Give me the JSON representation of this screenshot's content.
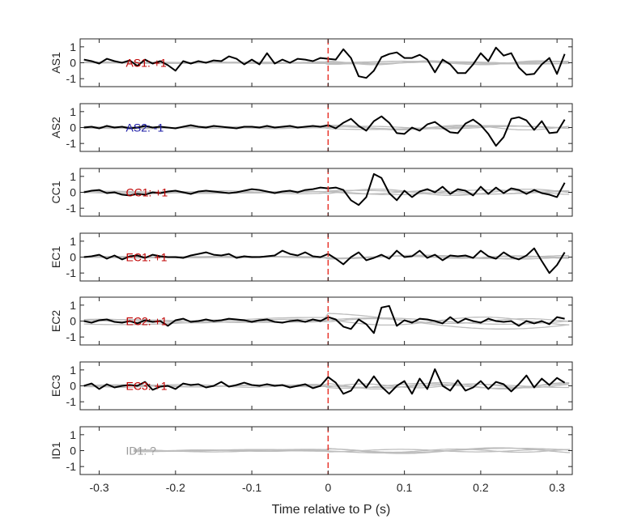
{
  "chart_data": {
    "type": "line",
    "xlabel": "Time relative to P (s)",
    "xlim": [
      -0.325,
      0.32
    ],
    "ylim": [
      -1.5,
      1.5
    ],
    "xticks": [
      -0.3,
      -0.2,
      -0.1,
      0,
      0.1,
      0.2,
      0.3
    ],
    "xtick_labels": [
      "-0.3",
      "-0.2",
      "-0.1",
      "0",
      "0.1",
      "0.2",
      "0.3"
    ],
    "yticks": [
      -1,
      0,
      1
    ],
    "ytick_labels": [
      "-1",
      "0",
      "1"
    ],
    "marker_x": 0,
    "marker_color": "#e8332a",
    "black_color": "#000000",
    "gray_color": "#bdbdbd",
    "panels": [
      {
        "ylabel": "AS1",
        "annotation": "AS1: +1",
        "annotation_color": "#c00000",
        "black": {
          "x": [
            -0.32,
            -0.31,
            -0.3,
            -0.29,
            -0.28,
            -0.27,
            -0.26,
            -0.25,
            -0.24,
            -0.23,
            -0.22,
            -0.21,
            -0.2,
            -0.19,
            -0.18,
            -0.17,
            -0.16,
            -0.15,
            -0.14,
            -0.13,
            -0.12,
            -0.11,
            -0.1,
            -0.09,
            -0.08,
            -0.07,
            -0.06,
            -0.05,
            -0.04,
            -0.03,
            -0.02,
            -0.01,
            0,
            0.01,
            0.02,
            0.03,
            0.04,
            0.05,
            0.06,
            0.07,
            0.08,
            0.09,
            0.1,
            0.11,
            0.12,
            0.13,
            0.14,
            0.15,
            0.16,
            0.17,
            0.18,
            0.19,
            0.2,
            0.21,
            0.22,
            0.23,
            0.24,
            0.25,
            0.26,
            0.27,
            0.28,
            0.29,
            0.3,
            0.31
          ],
          "y": [
            0.2,
            0.1,
            -0.05,
            0.25,
            0.1,
            0.0,
            0.15,
            -0.2,
            0.2,
            -0.05,
            0.1,
            -0.15,
            -0.5,
            0.1,
            -0.05,
            0.1,
            0.0,
            0.15,
            0.1,
            0.4,
            0.25,
            -0.1,
            0.2,
            -0.1,
            0.6,
            -0.05,
            0.2,
            0.0,
            0.25,
            0.2,
            0.1,
            0.3,
            0.25,
            0.2,
            0.85,
            0.3,
            -0.85,
            -0.95,
            -0.5,
            0.35,
            0.55,
            0.65,
            0.3,
            0.3,
            0.5,
            0.2,
            -0.6,
            0.2,
            -0.1,
            -0.65,
            -0.65,
            -0.1,
            0.6,
            0.1,
            0.95,
            0.45,
            0.6,
            -0.3,
            -0.75,
            -0.7,
            -0.1,
            0.3,
            -0.7,
            0.55
          ]
        },
        "gray": [
          {
            "amp": 0.08,
            "freq": 3,
            "phase": 0.0
          },
          {
            "amp": 0.1,
            "freq": 5,
            "phase": 1.0
          },
          {
            "amp": 0.06,
            "freq": 4,
            "phase": 2.0
          },
          {
            "amp": 0.12,
            "freq": 7,
            "phase": 0.5
          },
          {
            "amp": 0.05,
            "freq": 6,
            "phase": 3.0
          }
        ]
      },
      {
        "ylabel": "AS2",
        "annotation": "AS2: -1",
        "annotation_color": "#1a1aa6",
        "black": {
          "x": [
            -0.32,
            -0.31,
            -0.3,
            -0.29,
            -0.28,
            -0.27,
            -0.26,
            -0.25,
            -0.24,
            -0.23,
            -0.22,
            -0.21,
            -0.2,
            -0.19,
            -0.18,
            -0.17,
            -0.16,
            -0.15,
            -0.14,
            -0.13,
            -0.12,
            -0.11,
            -0.1,
            -0.09,
            -0.08,
            -0.07,
            -0.06,
            -0.05,
            -0.04,
            -0.03,
            -0.02,
            -0.01,
            0,
            0.01,
            0.02,
            0.03,
            0.04,
            0.05,
            0.06,
            0.07,
            0.08,
            0.09,
            0.1,
            0.11,
            0.12,
            0.13,
            0.14,
            0.15,
            0.16,
            0.17,
            0.18,
            0.19,
            0.2,
            0.21,
            0.22,
            0.23,
            0.24,
            0.25,
            0.26,
            0.27,
            0.28,
            0.29,
            0.3,
            0.31
          ],
          "y": [
            0.0,
            0.05,
            -0.05,
            0.1,
            0.0,
            0.05,
            -0.05,
            0.0,
            0.1,
            0.0,
            0.05,
            0.0,
            -0.05,
            0.05,
            0.15,
            0.05,
            0.0,
            0.1,
            0.05,
            0.0,
            -0.05,
            0.05,
            0.05,
            0.0,
            0.1,
            0.0,
            0.05,
            0.1,
            0.0,
            0.05,
            0.1,
            0.05,
            0.15,
            -0.05,
            0.3,
            0.55,
            0.1,
            -0.2,
            0.4,
            0.7,
            0.3,
            -0.35,
            -0.4,
            0.0,
            -0.2,
            0.2,
            0.35,
            0.0,
            -0.3,
            -0.35,
            0.25,
            0.5,
            0.15,
            -0.4,
            -1.15,
            -0.6,
            0.55,
            0.65,
            0.45,
            -0.15,
            0.4,
            -0.35,
            -0.3,
            0.5
          ]
        },
        "gray": [
          {
            "amp": 0.1,
            "freq": 4,
            "phase": 0.3
          },
          {
            "amp": 0.15,
            "freq": 6,
            "phase": 1.7
          },
          {
            "amp": 0.08,
            "freq": 5,
            "phase": 2.5
          },
          {
            "amp": 0.12,
            "freq": 3,
            "phase": 4.0
          }
        ]
      },
      {
        "ylabel": "CC1",
        "annotation": "CC1: +1",
        "annotation_color": "#c00000",
        "black": {
          "x": [
            -0.32,
            -0.31,
            -0.3,
            -0.29,
            -0.28,
            -0.27,
            -0.26,
            -0.25,
            -0.24,
            -0.23,
            -0.22,
            -0.21,
            -0.2,
            -0.19,
            -0.18,
            -0.17,
            -0.16,
            -0.15,
            -0.14,
            -0.13,
            -0.12,
            -0.11,
            -0.1,
            -0.09,
            -0.08,
            -0.07,
            -0.06,
            -0.05,
            -0.04,
            -0.03,
            -0.02,
            -0.01,
            0,
            0.01,
            0.02,
            0.03,
            0.04,
            0.05,
            0.06,
            0.07,
            0.08,
            0.09,
            0.1,
            0.11,
            0.12,
            0.13,
            0.14,
            0.15,
            0.16,
            0.17,
            0.18,
            0.19,
            0.2,
            0.21,
            0.22,
            0.23,
            0.24,
            0.25,
            0.26,
            0.27,
            0.28,
            0.29,
            0.3,
            0.31
          ],
          "y": [
            0.0,
            0.1,
            0.15,
            -0.05,
            0.0,
            -0.15,
            -0.2,
            -0.1,
            -0.15,
            0.0,
            -0.05,
            0.05,
            0.1,
            0.0,
            -0.1,
            0.05,
            0.1,
            0.05,
            0.0,
            -0.05,
            0.0,
            0.1,
            0.2,
            0.15,
            0.05,
            -0.05,
            0.05,
            0.1,
            0.0,
            0.15,
            0.2,
            0.3,
            0.25,
            0.3,
            0.15,
            -0.5,
            -0.8,
            -0.3,
            1.15,
            0.9,
            -0.05,
            -0.5,
            0.1,
            -0.3,
            0.05,
            0.2,
            0.0,
            0.35,
            -0.1,
            0.2,
            0.1,
            -0.2,
            0.35,
            -0.1,
            0.3,
            -0.05,
            0.25,
            0.15,
            -0.1,
            0.15,
            -0.05,
            -0.15,
            -0.3,
            0.6
          ]
        },
        "gray": [
          {
            "amp": 0.15,
            "freq": 4,
            "phase": 0.8
          },
          {
            "amp": 0.2,
            "freq": 5,
            "phase": 2.1
          },
          {
            "amp": 0.1,
            "freq": 6,
            "phase": 3.3
          },
          {
            "amp": 0.12,
            "freq": 3,
            "phase": 1.2
          }
        ]
      },
      {
        "ylabel": "EC1",
        "annotation": "EC1: +1",
        "annotation_color": "#c00000",
        "black": {
          "x": [
            -0.32,
            -0.31,
            -0.3,
            -0.29,
            -0.28,
            -0.27,
            -0.26,
            -0.25,
            -0.24,
            -0.23,
            -0.22,
            -0.21,
            -0.2,
            -0.19,
            -0.18,
            -0.17,
            -0.16,
            -0.15,
            -0.14,
            -0.13,
            -0.12,
            -0.11,
            -0.1,
            -0.09,
            -0.08,
            -0.07,
            -0.06,
            -0.05,
            -0.04,
            -0.03,
            -0.02,
            -0.01,
            0,
            0.01,
            0.02,
            0.03,
            0.04,
            0.05,
            0.06,
            0.07,
            0.08,
            0.09,
            0.1,
            0.11,
            0.12,
            0.13,
            0.14,
            0.15,
            0.16,
            0.17,
            0.18,
            0.19,
            0.2,
            0.21,
            0.22,
            0.23,
            0.24,
            0.25,
            0.26,
            0.27,
            0.28,
            0.29,
            0.3,
            0.31
          ],
          "y": [
            0.0,
            0.05,
            0.15,
            -0.1,
            0.1,
            -0.15,
            0.05,
            0.1,
            -0.05,
            0.15,
            0.05,
            0.0,
            0.0,
            -0.05,
            0.1,
            0.2,
            0.3,
            0.15,
            0.1,
            0.2,
            -0.05,
            0.05,
            0.0,
            0.0,
            0.05,
            0.1,
            0.4,
            0.2,
            0.1,
            0.3,
            0.05,
            0.0,
            0.2,
            -0.1,
            -0.45,
            0.0,
            0.3,
            -0.2,
            -0.05,
            0.15,
            -0.1,
            0.4,
            0.0,
            0.05,
            0.4,
            -0.05,
            0.15,
            -0.2,
            0.1,
            0.05,
            0.1,
            -0.05,
            0.4,
            0.05,
            -0.1,
            0.3,
            0.0,
            -0.15,
            0.1,
            0.55,
            -0.25,
            -1.0,
            -0.5,
            0.3
          ]
        },
        "gray": [
          {
            "amp": 0.1,
            "freq": 5,
            "phase": 0.4
          },
          {
            "amp": 0.08,
            "freq": 7,
            "phase": 1.9
          },
          {
            "amp": 0.12,
            "freq": 4,
            "phase": 3.0
          },
          {
            "amp": 0.06,
            "freq": 6,
            "phase": 5.0
          }
        ]
      },
      {
        "ylabel": "EC2",
        "annotation": "EC2: +1",
        "annotation_color": "#c00000",
        "black": {
          "x": [
            -0.32,
            -0.31,
            -0.3,
            -0.29,
            -0.28,
            -0.27,
            -0.26,
            -0.25,
            -0.24,
            -0.23,
            -0.22,
            -0.21,
            -0.2,
            -0.19,
            -0.18,
            -0.17,
            -0.16,
            -0.15,
            -0.14,
            -0.13,
            -0.12,
            -0.11,
            -0.1,
            -0.09,
            -0.08,
            -0.07,
            -0.06,
            -0.05,
            -0.04,
            -0.03,
            -0.02,
            -0.01,
            0,
            0.01,
            0.02,
            0.03,
            0.04,
            0.05,
            0.06,
            0.07,
            0.08,
            0.09,
            0.1,
            0.11,
            0.12,
            0.13,
            0.14,
            0.15,
            0.16,
            0.17,
            0.18,
            0.19,
            0.2,
            0.21,
            0.22,
            0.23,
            0.24,
            0.25,
            0.26,
            0.27,
            0.28,
            0.29,
            0.3,
            0.31
          ],
          "y": [
            0.0,
            -0.1,
            0.05,
            0.1,
            -0.05,
            -0.1,
            0.0,
            -0.15,
            0.05,
            -0.05,
            0.0,
            -0.3,
            0.05,
            0.15,
            -0.05,
            0.0,
            0.1,
            0.0,
            0.05,
            0.15,
            0.1,
            0.05,
            -0.05,
            0.05,
            0.1,
            -0.05,
            -0.1,
            0.0,
            0.05,
            -0.05,
            0.1,
            0.0,
            0.25,
            0.1,
            -0.35,
            -0.5,
            0.1,
            -0.2,
            -0.75,
            0.85,
            0.95,
            -0.3,
            0.05,
            -0.1,
            0.15,
            0.1,
            0.0,
            -0.15,
            0.25,
            -0.1,
            0.15,
            0.0,
            -0.1,
            0.15,
            0.0,
            -0.05,
            0.0,
            -0.3,
            0.0,
            -0.15,
            0.0,
            -0.2,
            0.25,
            0.15
          ]
        },
        "gray": [
          {
            "amp": 0.2,
            "freq": 3,
            "phase": 0.6
          },
          {
            "amp": 0.5,
            "freq": 2,
            "phase": 4.1
          },
          {
            "amp": 0.15,
            "freq": 5,
            "phase": 2.2
          },
          {
            "amp": 0.25,
            "freq": 4,
            "phase": 1.0
          }
        ]
      },
      {
        "ylabel": "EC3",
        "annotation": "EC3: +1",
        "annotation_color": "#c00000",
        "black": {
          "x": [
            -0.32,
            -0.31,
            -0.3,
            -0.29,
            -0.28,
            -0.27,
            -0.26,
            -0.25,
            -0.24,
            -0.23,
            -0.22,
            -0.21,
            -0.2,
            -0.19,
            -0.18,
            -0.17,
            -0.16,
            -0.15,
            -0.14,
            -0.13,
            -0.12,
            -0.11,
            -0.1,
            -0.09,
            -0.08,
            -0.07,
            -0.06,
            -0.05,
            -0.04,
            -0.03,
            -0.02,
            -0.01,
            0,
            0.01,
            0.02,
            0.03,
            0.04,
            0.05,
            0.06,
            0.07,
            0.08,
            0.09,
            0.1,
            0.11,
            0.12,
            0.13,
            0.14,
            0.15,
            0.16,
            0.17,
            0.18,
            0.19,
            0.2,
            0.21,
            0.22,
            0.23,
            0.24,
            0.25,
            0.26,
            0.27,
            0.28,
            0.29,
            0.3,
            0.31
          ],
          "y": [
            0.0,
            0.15,
            -0.2,
            0.1,
            -0.1,
            0.0,
            0.05,
            0.0,
            0.25,
            -0.25,
            -0.05,
            0.0,
            -0.2,
            0.15,
            0.05,
            0.1,
            -0.1,
            0.0,
            0.25,
            -0.05,
            0.05,
            0.2,
            0.05,
            0.0,
            0.1,
            0.0,
            0.05,
            -0.1,
            0.0,
            0.1,
            -0.15,
            0.0,
            0.55,
            0.2,
            -0.5,
            -0.3,
            0.4,
            -0.1,
            0.6,
            -0.05,
            -0.5,
            0.0,
            0.3,
            -0.5,
            0.45,
            -0.2,
            1.05,
            0.0,
            -0.3,
            0.35,
            -0.3,
            -0.1,
            0.3,
            -0.2,
            0.25,
            0.1,
            -0.35,
            0.1,
            0.65,
            -0.1,
            0.45,
            0.05,
            0.5,
            0.2
          ]
        },
        "gray": [
          {
            "amp": 0.15,
            "freq": 5,
            "phase": 0.2
          },
          {
            "amp": 0.2,
            "freq": 6,
            "phase": 2.8
          },
          {
            "amp": 0.1,
            "freq": 4,
            "phase": 1.4
          },
          {
            "amp": 0.12,
            "freq": 7,
            "phase": 4.3
          }
        ]
      },
      {
        "ylabel": "ID1",
        "annotation": "ID1: ?",
        "annotation_color": "#9a9a9a",
        "black": null,
        "gray": [
          {
            "amp": 0.18,
            "freq": 4,
            "phase": 0.5
          },
          {
            "amp": 0.1,
            "freq": 6,
            "phase": 2.0
          },
          {
            "amp": 0.15,
            "freq": 3,
            "phase": 3.5
          },
          {
            "amp": 0.08,
            "freq": 5,
            "phase": 1.1
          }
        ]
      }
    ]
  }
}
